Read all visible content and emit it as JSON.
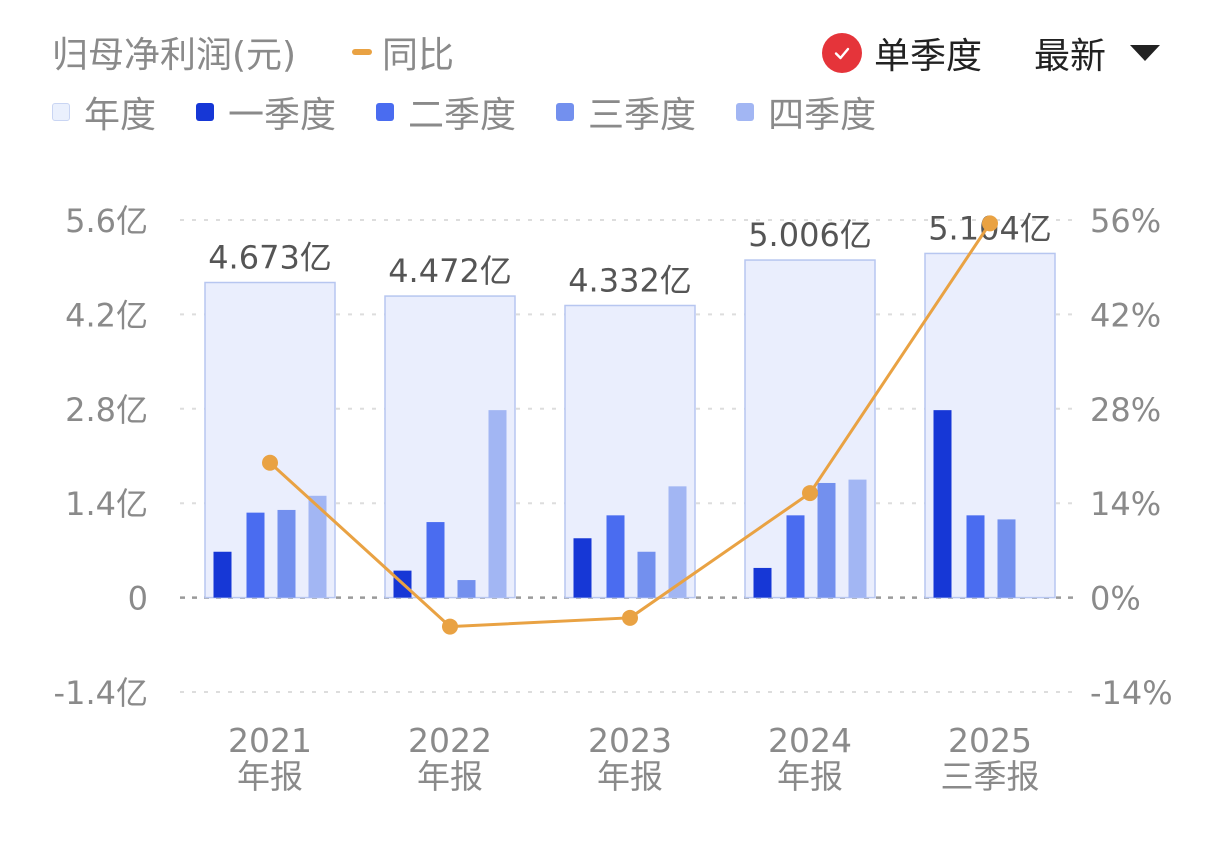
{
  "header": {
    "title": "归母净利润(元)",
    "yoy_legend": "同比",
    "single_quarter_label": "单季度",
    "sort_label": "最新"
  },
  "legend": [
    {
      "label": "年度",
      "color": "#eaf0fd"
    },
    {
      "label": "一季度",
      "color": "#1637d6"
    },
    {
      "label": "二季度",
      "color": "#4a6cf0"
    },
    {
      "label": "三季度",
      "color": "#7390ee"
    },
    {
      "label": "四季度",
      "color": "#a2b6f3"
    }
  ],
  "colors": {
    "annual_fill": "#eaeefd",
    "annual_border": "#b7c6f0",
    "q1": "#1637d6",
    "q2": "#4a6cf0",
    "q3": "#7390ee",
    "q4": "#a2b6f3",
    "yoy_line": "#e9a243",
    "axis_text": "#8a8a8a",
    "grid": "#dddddd",
    "check": "#e5343a"
  },
  "chart_data": {
    "type": "bar",
    "categories": [
      "2021\n年报",
      "2022\n年报",
      "2023\n年报",
      "2024\n年报",
      "2025\n三季报"
    ],
    "annual_labels": [
      "4.673亿",
      "4.472亿",
      "4.332亿",
      "5.006亿",
      "5.104亿"
    ],
    "annual_values": [
      4.673,
      4.472,
      4.332,
      5.006,
      5.104
    ],
    "series": [
      {
        "name": "一季度",
        "values": [
          0.68,
          0.4,
          0.88,
          0.44,
          2.78
        ]
      },
      {
        "name": "二季度",
        "values": [
          1.26,
          1.12,
          1.22,
          1.22,
          1.22
        ]
      },
      {
        "name": "三季度",
        "values": [
          1.3,
          0.26,
          0.68,
          1.7,
          1.16
        ]
      },
      {
        "name": "四季度",
        "values": [
          1.51,
          2.78,
          1.65,
          1.75,
          null
        ]
      }
    ],
    "yoy": {
      "name": "同比",
      "values": [
        20.0,
        -4.3,
        -3.0,
        15.5,
        55.5
      ]
    },
    "y_left": {
      "ticks": [
        -1.4,
        0,
        1.4,
        2.8,
        4.2,
        5.6
      ],
      "tick_labels": [
        "-1.4亿",
        "0",
        "1.4亿",
        "2.8亿",
        "4.2亿",
        "5.6亿"
      ],
      "ylim": [
        -1.4,
        5.6
      ]
    },
    "y_right": {
      "ticks": [
        -14,
        0,
        14,
        28,
        42,
        56
      ],
      "tick_labels": [
        "-14%",
        "0%",
        "14%",
        "28%",
        "42%",
        "56%"
      ],
      "ylim": [
        -14,
        56
      ]
    },
    "grid": true
  }
}
